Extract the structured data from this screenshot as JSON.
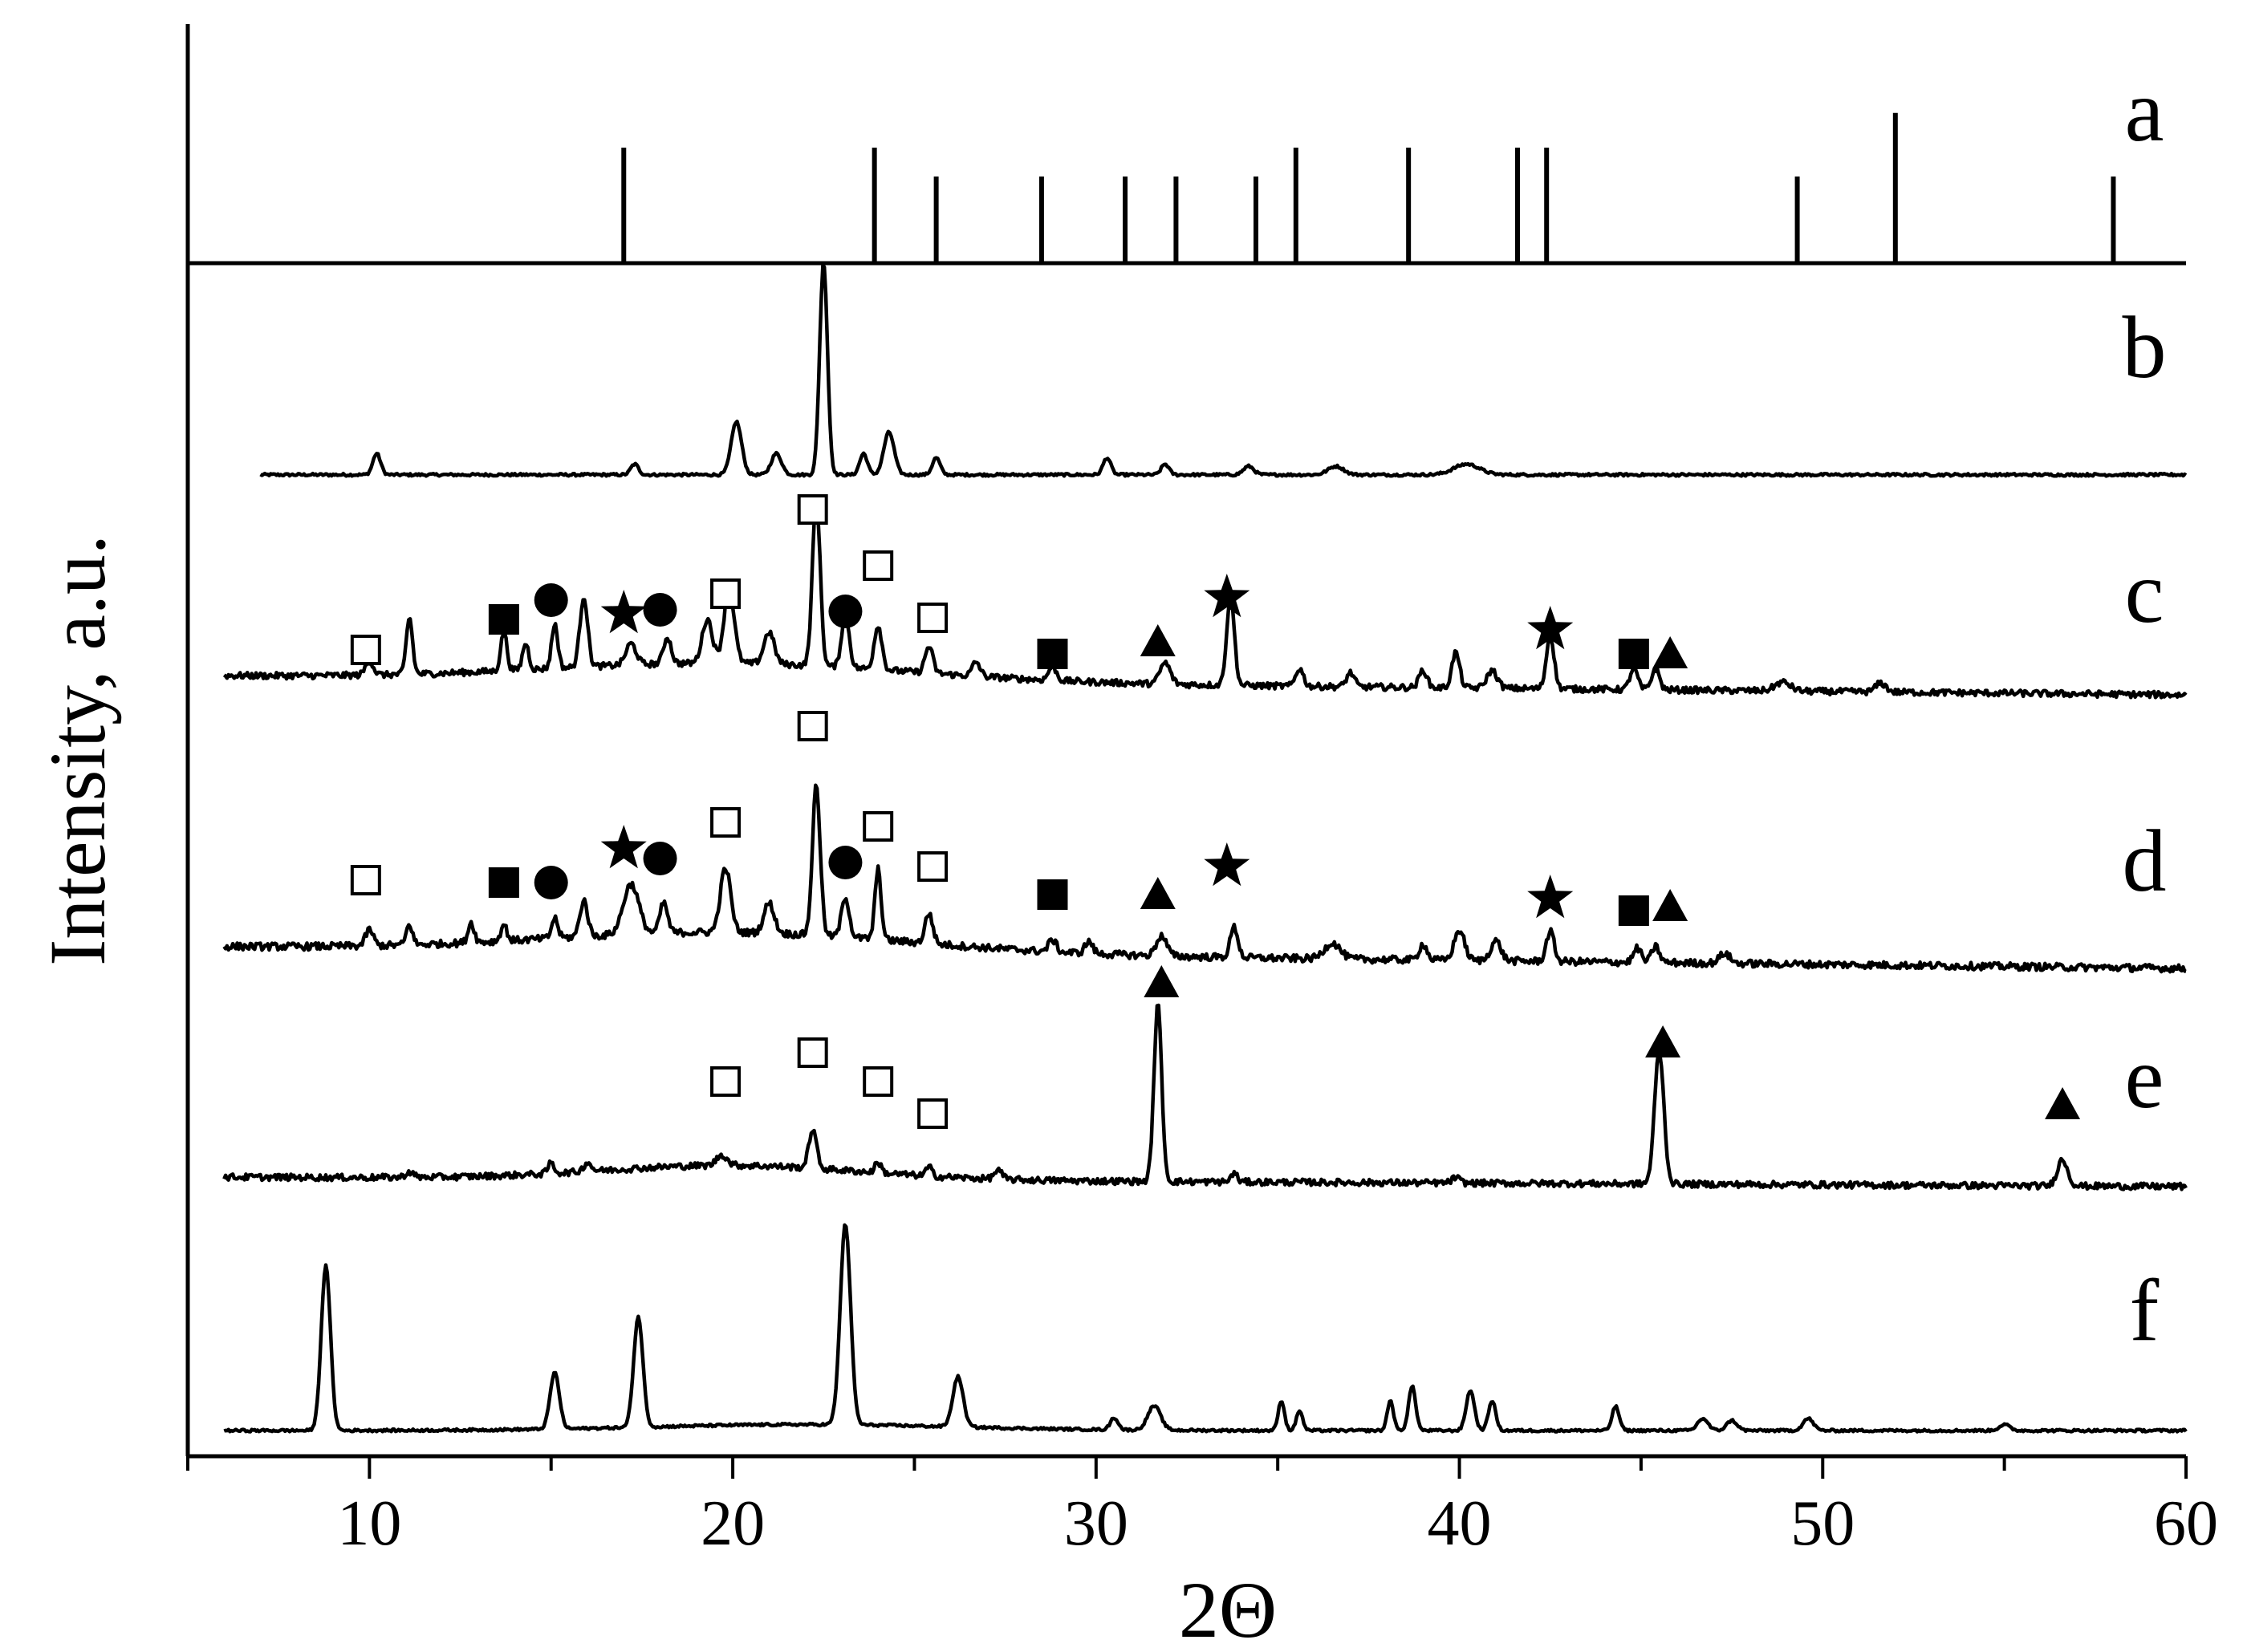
{
  "chart_data": {
    "type": "line",
    "xlabel": "2Θ",
    "ylabel": "Intensity, a.u.",
    "xlim": [
      5,
      60
    ],
    "xticks": [
      10,
      20,
      30,
      40,
      50,
      60
    ],
    "grid": false,
    "reference_pattern": {
      "label": "a",
      "peaks": [
        {
          "x": 17.0,
          "h": 0.6
        },
        {
          "x": 23.9,
          "h": 0.6
        },
        {
          "x": 25.6,
          "h": 0.45
        },
        {
          "x": 28.5,
          "h": 0.45
        },
        {
          "x": 30.8,
          "h": 0.45
        },
        {
          "x": 32.2,
          "h": 0.45
        },
        {
          "x": 34.4,
          "h": 0.45
        },
        {
          "x": 35.5,
          "h": 0.6
        },
        {
          "x": 38.6,
          "h": 0.6
        },
        {
          "x": 41.6,
          "h": 0.6
        },
        {
          "x": 42.4,
          "h": 0.6
        },
        {
          "x": 49.3,
          "h": 0.45
        },
        {
          "x": 52.0,
          "h": 0.78
        },
        {
          "x": 58.0,
          "h": 0.45
        }
      ]
    },
    "series": [
      {
        "label": "b",
        "x_start": 7,
        "baseline": 0.05,
        "peaks": [
          {
            "x": 10.2,
            "h": 0.1,
            "w": 0.15
          },
          {
            "x": 17.3,
            "h": 0.05,
            "w": 0.15
          },
          {
            "x": 20.1,
            "h": 0.25,
            "w": 0.2
          },
          {
            "x": 21.2,
            "h": 0.1,
            "w": 0.2
          },
          {
            "x": 22.5,
            "h": 1.0,
            "w": 0.15
          },
          {
            "x": 23.6,
            "h": 0.1,
            "w": 0.15
          },
          {
            "x": 24.3,
            "h": 0.2,
            "w": 0.2
          },
          {
            "x": 25.6,
            "h": 0.08,
            "w": 0.15
          },
          {
            "x": 30.3,
            "h": 0.08,
            "w": 0.15
          },
          {
            "x": 31.9,
            "h": 0.05,
            "w": 0.15
          },
          {
            "x": 34.2,
            "h": 0.04,
            "w": 0.2
          },
          {
            "x": 36.6,
            "h": 0.04,
            "w": 0.3
          },
          {
            "x": 40.2,
            "h": 0.05,
            "w": 0.5
          }
        ]
      },
      {
        "label": "c",
        "x_start": 6,
        "baseline": 0.08,
        "peaks": [
          {
            "x": 10.0,
            "h": 0.08,
            "w": 0.15
          },
          {
            "x": 11.1,
            "h": 0.32,
            "w": 0.12
          },
          {
            "x": 13.7,
            "h": 0.22,
            "w": 0.12
          },
          {
            "x": 14.3,
            "h": 0.15,
            "w": 0.12
          },
          {
            "x": 15.1,
            "h": 0.25,
            "w": 0.12
          },
          {
            "x": 15.9,
            "h": 0.4,
            "w": 0.15
          },
          {
            "x": 17.2,
            "h": 0.12,
            "w": 0.2
          },
          {
            "x": 18.2,
            "h": 0.15,
            "w": 0.15
          },
          {
            "x": 19.3,
            "h": 0.25,
            "w": 0.2
          },
          {
            "x": 19.9,
            "h": 0.42,
            "w": 0.2
          },
          {
            "x": 21.0,
            "h": 0.18,
            "w": 0.2
          },
          {
            "x": 22.3,
            "h": 0.95,
            "w": 0.15
          },
          {
            "x": 23.1,
            "h": 0.3,
            "w": 0.15
          },
          {
            "x": 24.0,
            "h": 0.25,
            "w": 0.15
          },
          {
            "x": 25.4,
            "h": 0.15,
            "w": 0.15
          },
          {
            "x": 26.7,
            "h": 0.08,
            "w": 0.15
          },
          {
            "x": 28.8,
            "h": 0.08,
            "w": 0.15
          },
          {
            "x": 31.9,
            "h": 0.12,
            "w": 0.2
          },
          {
            "x": 33.7,
            "h": 0.5,
            "w": 0.15
          },
          {
            "x": 35.6,
            "h": 0.1,
            "w": 0.15
          },
          {
            "x": 37.0,
            "h": 0.08,
            "w": 0.15
          },
          {
            "x": 39.0,
            "h": 0.1,
            "w": 0.15
          },
          {
            "x": 39.9,
            "h": 0.2,
            "w": 0.15
          },
          {
            "x": 40.9,
            "h": 0.1,
            "w": 0.2
          },
          {
            "x": 42.5,
            "h": 0.3,
            "w": 0.15
          },
          {
            "x": 44.8,
            "h": 0.12,
            "w": 0.15
          },
          {
            "x": 45.4,
            "h": 0.12,
            "w": 0.15
          },
          {
            "x": 48.9,
            "h": 0.05,
            "w": 0.3
          },
          {
            "x": 51.6,
            "h": 0.05,
            "w": 0.2
          }
        ],
        "markers": [
          {
            "x": 9.9,
            "shape": "open-square"
          },
          {
            "x": 13.7,
            "shape": "filled-square"
          },
          {
            "x": 15.0,
            "shape": "filled-circle"
          },
          {
            "x": 17.0,
            "shape": "star"
          },
          {
            "x": 18.0,
            "shape": "filled-circle"
          },
          {
            "x": 19.8,
            "shape": "open-square"
          },
          {
            "x": 22.2,
            "shape": "open-square"
          },
          {
            "x": 23.1,
            "shape": "filled-circle"
          },
          {
            "x": 24.0,
            "shape": "open-square"
          },
          {
            "x": 25.5,
            "shape": "open-square"
          },
          {
            "x": 28.8,
            "shape": "filled-square"
          },
          {
            "x": 31.7,
            "shape": "filled-triangle"
          },
          {
            "x": 33.6,
            "shape": "star"
          },
          {
            "x": 42.5,
            "shape": "star"
          },
          {
            "x": 44.8,
            "shape": "filled-square"
          },
          {
            "x": 45.8,
            "shape": "filled-triangle"
          }
        ]
      },
      {
        "label": "d",
        "x_start": 6,
        "baseline": 0.08,
        "peaks": [
          {
            "x": 10.0,
            "h": 0.08,
            "w": 0.15
          },
          {
            "x": 11.1,
            "h": 0.1,
            "w": 0.12
          },
          {
            "x": 12.8,
            "h": 0.1,
            "w": 0.12
          },
          {
            "x": 13.7,
            "h": 0.08,
            "w": 0.12
          },
          {
            "x": 15.1,
            "h": 0.1,
            "w": 0.12
          },
          {
            "x": 15.9,
            "h": 0.18,
            "w": 0.15
          },
          {
            "x": 17.2,
            "h": 0.25,
            "w": 0.3
          },
          {
            "x": 18.1,
            "h": 0.15,
            "w": 0.15
          },
          {
            "x": 19.8,
            "h": 0.32,
            "w": 0.2
          },
          {
            "x": 21.0,
            "h": 0.15,
            "w": 0.2
          },
          {
            "x": 22.3,
            "h": 0.75,
            "w": 0.15
          },
          {
            "x": 23.1,
            "h": 0.2,
            "w": 0.15
          },
          {
            "x": 24.0,
            "h": 0.35,
            "w": 0.12
          },
          {
            "x": 25.4,
            "h": 0.15,
            "w": 0.15
          },
          {
            "x": 28.8,
            "h": 0.06,
            "w": 0.15
          },
          {
            "x": 29.8,
            "h": 0.06,
            "w": 0.15
          },
          {
            "x": 31.8,
            "h": 0.1,
            "w": 0.2
          },
          {
            "x": 33.8,
            "h": 0.15,
            "w": 0.15
          },
          {
            "x": 36.5,
            "h": 0.08,
            "w": 0.3
          },
          {
            "x": 39.0,
            "h": 0.08,
            "w": 0.15
          },
          {
            "x": 40.0,
            "h": 0.15,
            "w": 0.2
          },
          {
            "x": 41.0,
            "h": 0.1,
            "w": 0.2
          },
          {
            "x": 42.5,
            "h": 0.15,
            "w": 0.15
          },
          {
            "x": 44.9,
            "h": 0.07,
            "w": 0.15
          },
          {
            "x": 45.4,
            "h": 0.08,
            "w": 0.15
          },
          {
            "x": 47.3,
            "h": 0.05,
            "w": 0.2
          }
        ],
        "markers": [
          {
            "x": 9.9,
            "shape": "open-square"
          },
          {
            "x": 13.7,
            "shape": "filled-square"
          },
          {
            "x": 15.0,
            "shape": "filled-circle"
          },
          {
            "x": 17.0,
            "shape": "star"
          },
          {
            "x": 18.0,
            "shape": "filled-circle"
          },
          {
            "x": 19.8,
            "shape": "open-square"
          },
          {
            "x": 22.2,
            "shape": "open-square"
          },
          {
            "x": 23.1,
            "shape": "filled-circle"
          },
          {
            "x": 24.0,
            "shape": "open-square"
          },
          {
            "x": 25.5,
            "shape": "open-square"
          },
          {
            "x": 28.8,
            "shape": "filled-square"
          },
          {
            "x": 31.7,
            "shape": "filled-triangle"
          },
          {
            "x": 33.6,
            "shape": "star"
          },
          {
            "x": 42.5,
            "shape": "star"
          },
          {
            "x": 44.8,
            "shape": "filled-square"
          },
          {
            "x": 45.8,
            "shape": "filled-triangle"
          }
        ]
      },
      {
        "label": "e",
        "x_start": 6,
        "baseline": 0.05,
        "peaks": [
          {
            "x": 11.1,
            "h": 0.03,
            "w": 0.15
          },
          {
            "x": 15.0,
            "h": 0.06,
            "w": 0.12
          },
          {
            "x": 16.0,
            "h": 0.05,
            "w": 0.15
          },
          {
            "x": 19.7,
            "h": 0.06,
            "w": 0.2
          },
          {
            "x": 22.2,
            "h": 0.22,
            "w": 0.15
          },
          {
            "x": 24.0,
            "h": 0.06,
            "w": 0.12
          },
          {
            "x": 25.4,
            "h": 0.05,
            "w": 0.12
          },
          {
            "x": 27.3,
            "h": 0.05,
            "w": 0.15
          },
          {
            "x": 31.7,
            "h": 1.0,
            "w": 0.15
          },
          {
            "x": 33.8,
            "h": 0.05,
            "w": 0.12
          },
          {
            "x": 39.9,
            "h": 0.03,
            "w": 0.15
          },
          {
            "x": 45.5,
            "h": 0.75,
            "w": 0.18
          },
          {
            "x": 56.6,
            "h": 0.15,
            "w": 0.2
          }
        ],
        "markers": [
          {
            "x": 19.8,
            "shape": "open-square"
          },
          {
            "x": 22.2,
            "shape": "open-square"
          },
          {
            "x": 24.0,
            "shape": "open-square"
          },
          {
            "x": 25.5,
            "shape": "open-square"
          },
          {
            "x": 31.8,
            "shape": "filled-triangle"
          },
          {
            "x": 45.6,
            "shape": "filled-triangle"
          },
          {
            "x": 56.6,
            "shape": "filled-triangle"
          }
        ]
      },
      {
        "label": "f",
        "x_start": 6,
        "baseline": 0.02,
        "peaks": [
          {
            "x": 8.8,
            "h": 0.82,
            "w": 0.18
          },
          {
            "x": 15.1,
            "h": 0.28,
            "w": 0.18
          },
          {
            "x": 17.4,
            "h": 0.55,
            "w": 0.18
          },
          {
            "x": 23.1,
            "h": 1.0,
            "w": 0.2
          },
          {
            "x": 26.2,
            "h": 0.25,
            "w": 0.2
          },
          {
            "x": 30.5,
            "h": 0.06,
            "w": 0.15
          },
          {
            "x": 31.6,
            "h": 0.12,
            "w": 0.25
          },
          {
            "x": 35.1,
            "h": 0.15,
            "w": 0.12
          },
          {
            "x": 35.6,
            "h": 0.1,
            "w": 0.12
          },
          {
            "x": 38.1,
            "h": 0.15,
            "w": 0.12
          },
          {
            "x": 38.7,
            "h": 0.22,
            "w": 0.14
          },
          {
            "x": 40.3,
            "h": 0.2,
            "w": 0.16
          },
          {
            "x": 40.9,
            "h": 0.15,
            "w": 0.14
          },
          {
            "x": 44.3,
            "h": 0.12,
            "w": 0.14
          },
          {
            "x": 46.7,
            "h": 0.06,
            "w": 0.2
          },
          {
            "x": 47.5,
            "h": 0.05,
            "w": 0.2
          },
          {
            "x": 49.6,
            "h": 0.06,
            "w": 0.2
          },
          {
            "x": 55.0,
            "h": 0.03,
            "w": 0.2
          }
        ]
      }
    ]
  }
}
